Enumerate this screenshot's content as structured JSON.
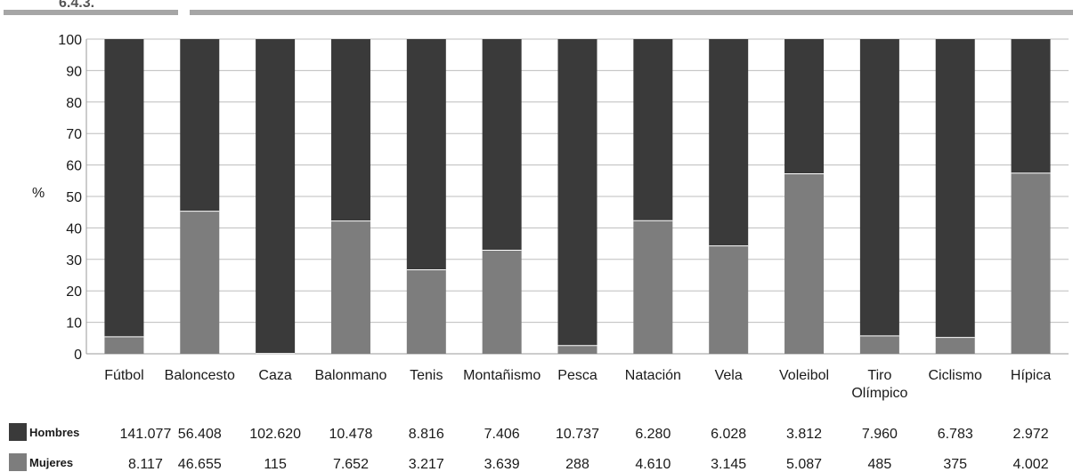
{
  "header": {
    "corner_text": "6.4.3."
  },
  "colors": {
    "hombres": "#3a3a3a",
    "mujeres": "#7d7d7d",
    "grid": "#bdbdbd",
    "rule": "#a6a6a6"
  },
  "chart_data": {
    "type": "bar",
    "stacked": true,
    "ylabel": "%",
    "ylim": [
      0,
      100
    ],
    "yticks": [
      "0",
      "10",
      "20",
      "30",
      "40",
      "50",
      "60",
      "70",
      "80",
      "90",
      "100"
    ],
    "grid": true,
    "categories": [
      "Fútbol",
      "Baloncesto",
      "Caza",
      "Balonmano",
      "Tenis",
      "Montañismo",
      "Pesca",
      "Natación",
      "Vela",
      "Voleibol",
      "Tiro\nOlímpico",
      "Ciclismo",
      "Hípica"
    ],
    "series": [
      {
        "name": "Mujeres",
        "values": [
          5.4,
          45.3,
          0.1,
          42.2,
          26.7,
          32.9,
          2.6,
          42.3,
          34.3,
          57.2,
          5.7,
          5.2,
          57.4
        ],
        "table_values": [
          "8.117",
          "46.655",
          "115",
          "7.652",
          "3.217",
          "3.639",
          "288",
          "4.610",
          "3.145",
          "5.087",
          "485",
          "375",
          "4.002"
        ]
      },
      {
        "name": "Hombres",
        "values": [
          94.6,
          54.7,
          99.9,
          57.8,
          73.3,
          67.1,
          97.4,
          57.7,
          65.7,
          42.8,
          94.3,
          94.8,
          42.6
        ],
        "table_values": [
          "141.077",
          "56.408",
          "102.620",
          "10.478",
          "8.816",
          "7.406",
          "10.737",
          "6.280",
          "6.028",
          "3.812",
          "7.960",
          "6.783",
          "2.972"
        ]
      }
    ]
  }
}
